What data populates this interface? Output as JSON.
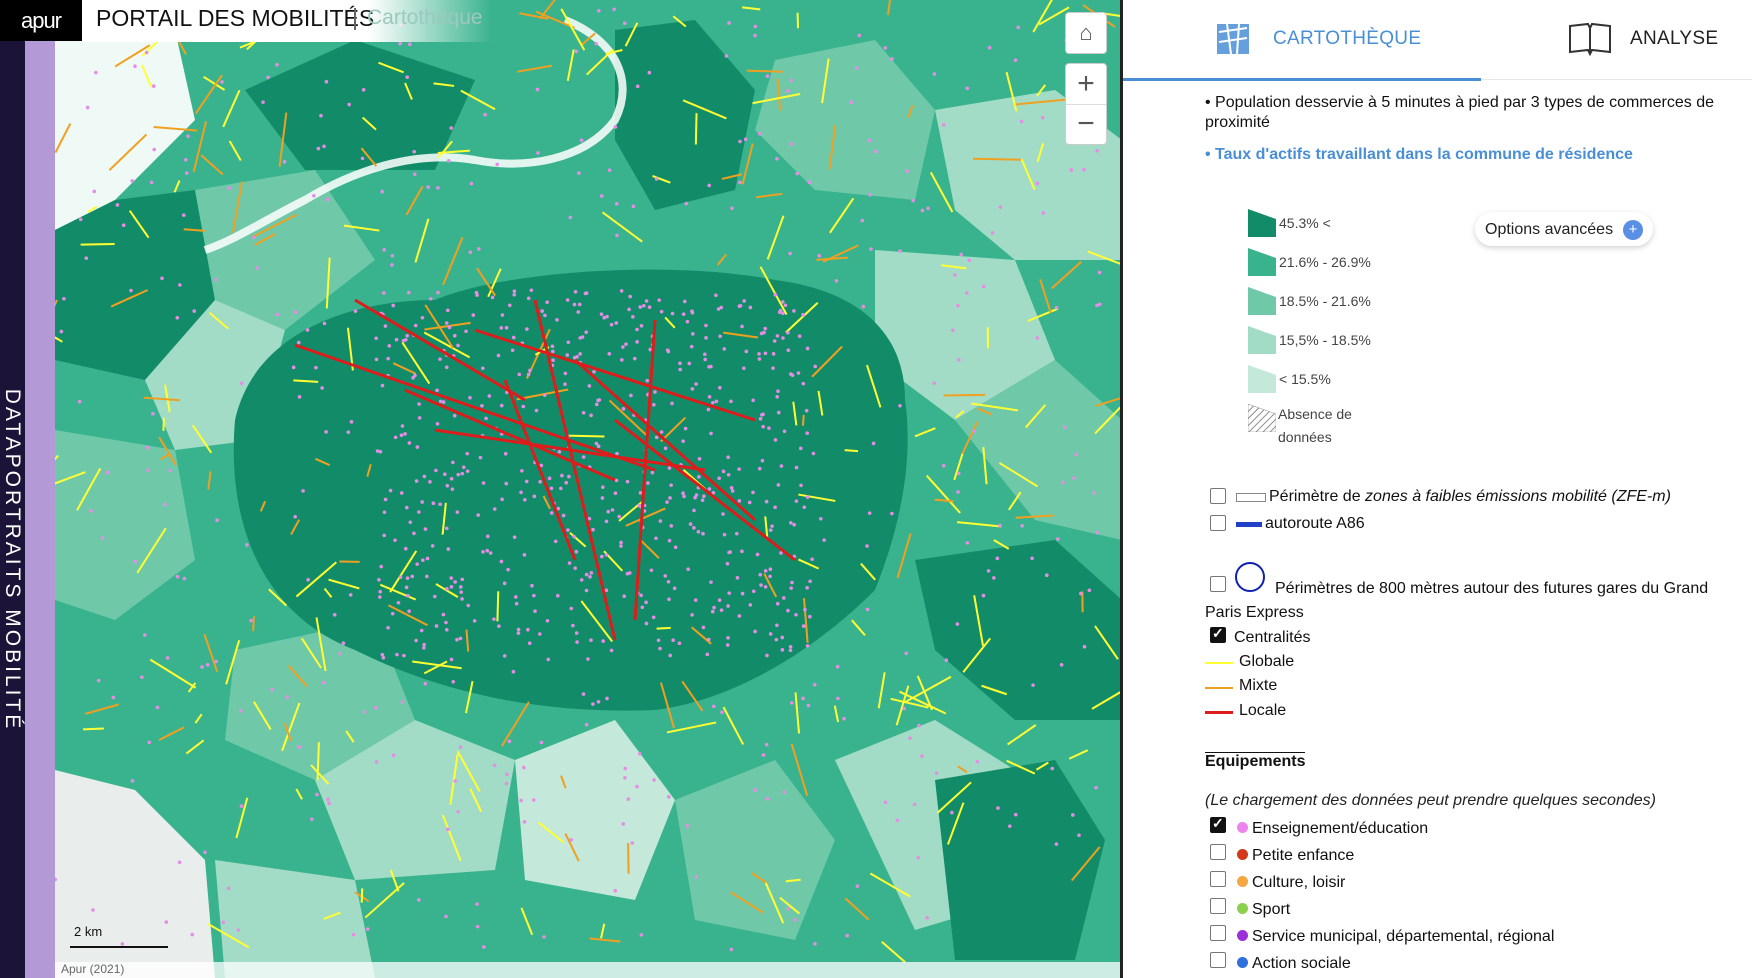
{
  "sidebar": {
    "vertical_title": "DATAPORTRAITS MOBILITÉ"
  },
  "header": {
    "logo": "apur",
    "title": "PORTAIL DES MOBILITÉS",
    "subtitle": "Cartothèque"
  },
  "map": {
    "scale_label": "2 km",
    "attribution": "Apur (2021)",
    "controls": {
      "home_icon": "home-icon",
      "zoom_in": "+",
      "zoom_out": "−"
    },
    "colors": {
      "dark": "#128c68",
      "mid": "#39b38e",
      "light": "#6fc9a9",
      "lighter": "#a3dcc6",
      "lightest": "#c4e8d9",
      "centralite_globale": "#ffff33",
      "centralite_mixte": "#f0a020",
      "centralite_locale": "#dd1c1c",
      "education_dots": "#e58de6"
    }
  },
  "tabs": [
    {
      "label": "CARTOTHÈQUE",
      "icon": "map-icon",
      "active": true
    },
    {
      "label": "ANALYSE",
      "icon": "book-icon",
      "active": false
    }
  ],
  "layers": {
    "item1": "• Population desservie à 5 minutes à pied par 3 types de commerces de proximité",
    "item2": "• Taux d'actifs travaillant dans la commune de résidence"
  },
  "legend": {
    "classes": [
      {
        "label": "45.3% <",
        "color": "#128c68"
      },
      {
        "label": "21.6% - 26.9%",
        "color": "#39b38e"
      },
      {
        "label": "18.5% - 21.6%",
        "color": "#6fc9a9"
      },
      {
        "label": "15,5% - 18.5%",
        "color": "#a3dcc6"
      },
      {
        "label": "< 15.5%",
        "color": "#c4e8d9"
      }
    ],
    "no_data": "Absence de données"
  },
  "options_button": {
    "label": "Options avancées",
    "plus": "+"
  },
  "overlays": {
    "zfe_prefix": "Périmètre de ",
    "zfe_italic": "zones à faibles émissions mobilité (ZFE-m)",
    "a86": "autoroute A86",
    "gpe": "Périmètres de 800 mètres autour des futures gares du Grand Paris Express",
    "centralites": "Centralités",
    "centralite_types": [
      "Globale",
      "Mixte",
      "Locale"
    ]
  },
  "equipements": {
    "title": "Equipements",
    "note": "(Le chargement des données peut prendre quelques secondes)",
    "items": [
      {
        "label": "Enseignement/éducation",
        "color": "#ee82ee",
        "checked": true
      },
      {
        "label": "Petite enfance",
        "color": "#d2381b",
        "checked": false
      },
      {
        "label": "Culture, loisir",
        "color": "#f5a742",
        "checked": false
      },
      {
        "label": "Sport",
        "color": "#8ccf4d",
        "checked": false
      },
      {
        "label": "Service municipal, départemental, régional",
        "color": "#9b30d8",
        "checked": false
      },
      {
        "label": "Action sociale",
        "color": "#2f6fdc",
        "checked": false
      }
    ]
  }
}
